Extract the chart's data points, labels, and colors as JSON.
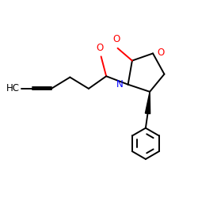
{
  "bg_color": "#ffffff",
  "bond_color": "#000000",
  "N_color": "#0000ff",
  "O_color": "#ff0000",
  "figsize": [
    2.5,
    2.5
  ],
  "dpi": 100,
  "lw": 1.4,
  "font_size": 8.5,
  "hc_font_size": 8.5,
  "xlim": [
    0.0,
    9.5
  ],
  "ylim": [
    0.5,
    9.5
  ]
}
